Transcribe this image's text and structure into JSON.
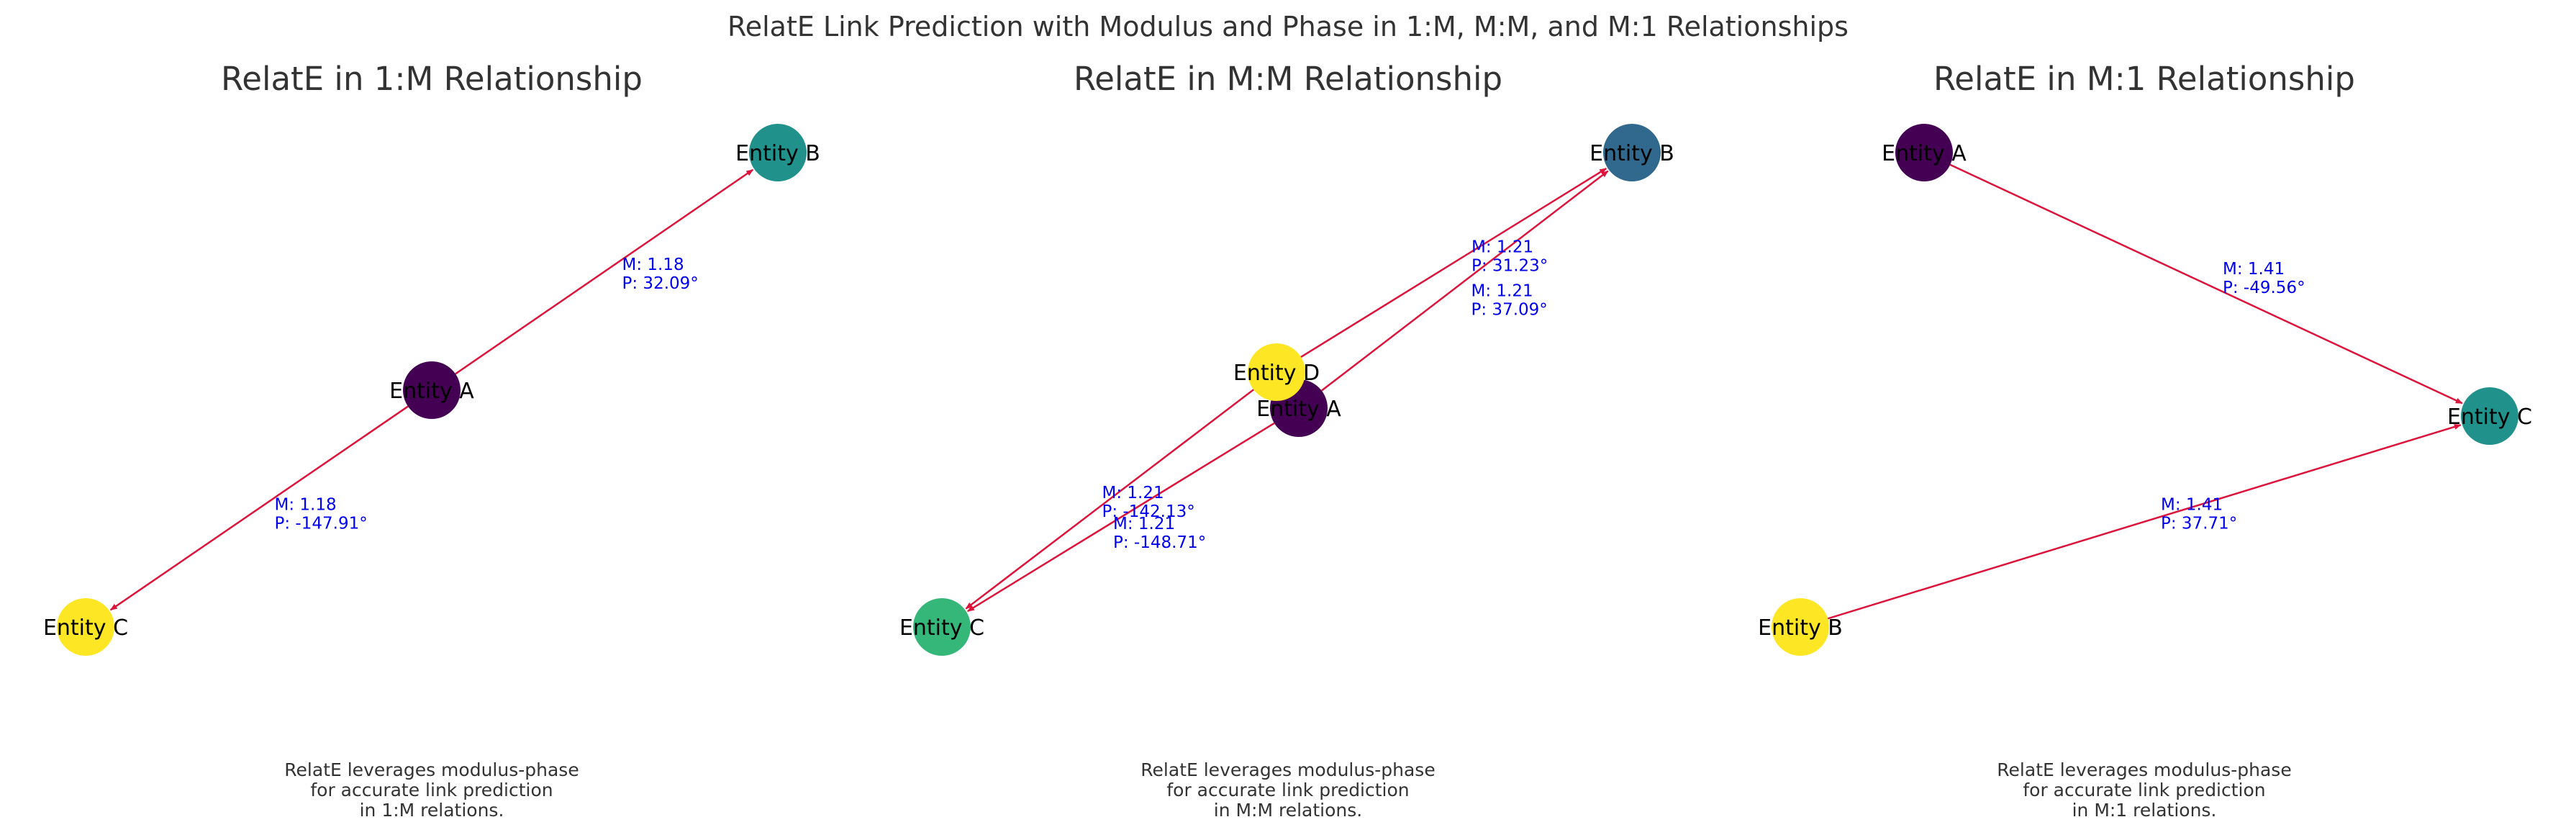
{
  "title": "RelatE Link Prediction with Modulus and Phase in 1:M, M:M, and M:1 Relationships",
  "colors": {
    "edge": "#dc143c",
    "edge_label": "#0000ee",
    "text": "#333333"
  },
  "panels": [
    {
      "title": "RelatE in 1:M Relationship",
      "caption": [
        "RelatE leverages modulus-phase",
        "for accurate link prediction",
        "in 1:M relations."
      ],
      "nodes": [
        {
          "label": "Entity A",
          "color": "#440154"
        },
        {
          "label": "Entity B",
          "color": "#21918c"
        },
        {
          "label": "Entity C",
          "color": "#fde725"
        }
      ],
      "edges": [
        {
          "source": 0,
          "target": 1,
          "modulus": "M: 1.18",
          "phase": "P: 32.09°"
        },
        {
          "source": 0,
          "target": 2,
          "modulus": "M: 1.18",
          "phase": "P: -147.91°"
        }
      ]
    },
    {
      "title": "RelatE in M:M Relationship",
      "caption": [
        "RelatE leverages modulus-phase",
        "for accurate link prediction",
        "in M:M relations."
      ],
      "nodes": [
        {
          "label": "Entity A",
          "color": "#440154"
        },
        {
          "label": "Entity B",
          "color": "#31688e"
        },
        {
          "label": "Entity C",
          "color": "#35b779"
        },
        {
          "label": "Entity D",
          "color": "#fde725"
        }
      ],
      "edges": [
        {
          "source": 0,
          "target": 1,
          "modulus": "M: 1.21",
          "phase": "P: 37.09°"
        },
        {
          "source": 0,
          "target": 2,
          "modulus": "M: 1.21",
          "phase": "P: -148.71°"
        },
        {
          "source": 3,
          "target": 1,
          "modulus": "M: 1.21",
          "phase": "P: 31.23°"
        },
        {
          "source": 3,
          "target": 2,
          "modulus": "M: 1.21",
          "phase": "P: -142.13°"
        }
      ]
    },
    {
      "title": "RelatE in M:1 Relationship",
      "caption": [
        "RelatE leverages modulus-phase",
        "for accurate link prediction",
        "in M:1 relations."
      ],
      "nodes": [
        {
          "label": "Entity A",
          "color": "#440154"
        },
        {
          "label": "Entity C",
          "color": "#21918c"
        },
        {
          "label": "Entity B",
          "color": "#fde725"
        }
      ],
      "edges": [
        {
          "source": 0,
          "target": 1,
          "modulus": "M: 1.41",
          "phase": "P: -49.56°"
        },
        {
          "source": 2,
          "target": 1,
          "modulus": "M: 1.41",
          "phase": "P: 37.71°"
        }
      ]
    }
  ]
}
